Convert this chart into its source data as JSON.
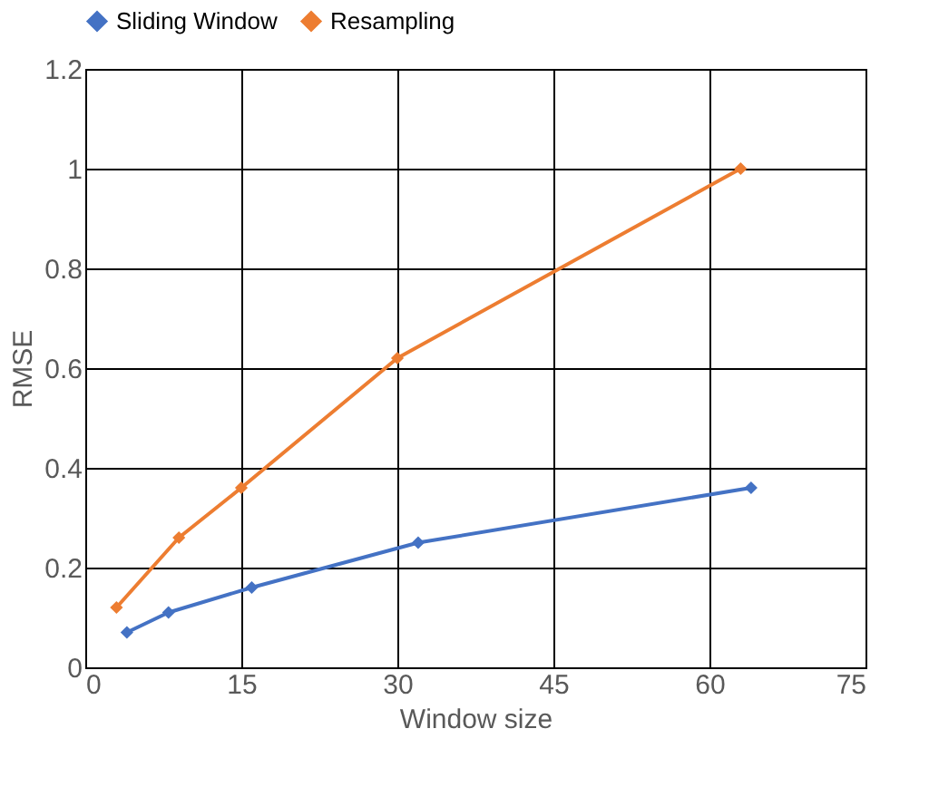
{
  "chart_data": {
    "type": "line",
    "xlabel": "Window size",
    "ylabel": "RMSE",
    "series": [
      {
        "name": "Sliding Window",
        "color": "#4472c4",
        "x": [
          4,
          8,
          16,
          32,
          64
        ],
        "values": [
          0.07,
          0.11,
          0.16,
          0.25,
          0.36
        ]
      },
      {
        "name": "Resampling",
        "color": "#ed7d31",
        "x": [
          3,
          9,
          15,
          30,
          63
        ],
        "values": [
          0.12,
          0.26,
          0.36,
          0.62,
          1.0
        ]
      }
    ],
    "xlim": [
      0,
      75
    ],
    "xticks": [
      0,
      15,
      30,
      45,
      60,
      75
    ],
    "ylim": [
      0,
      1.2
    ],
    "yticks": [
      0,
      0.2,
      0.4,
      0.6,
      0.8,
      1,
      1.2
    ],
    "grid": true,
    "legend": "top",
    "marker": "diamond",
    "line_style": "solid"
  }
}
